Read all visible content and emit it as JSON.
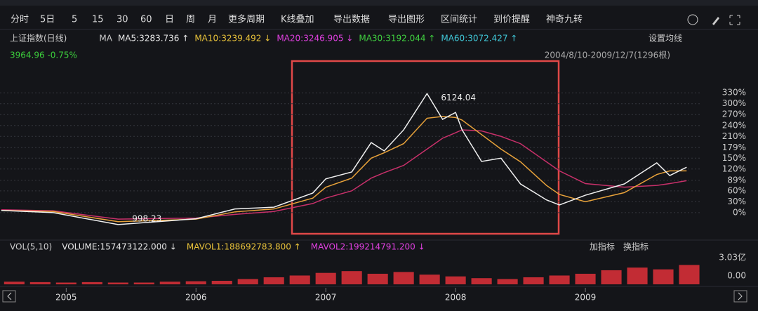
{
  "toolbar": [
    "分时",
    "5日",
    "5",
    "15",
    "30",
    "60",
    "日",
    "周",
    "月",
    "更多周期",
    "K线叠加",
    "导出数据",
    "导出图形",
    "区间统计",
    "到价提醒",
    "神奇九转"
  ],
  "indicator_bar": {
    "name": "上证指数(日线)",
    "ma_label": "MA",
    "ma": [
      {
        "text": "MA5:3283.736 ↑",
        "color": "#e6e6e6"
      },
      {
        "text": "MA10:3239.492 ↓",
        "color": "#e8c23a"
      },
      {
        "text": "MA20:3246.905 ↓",
        "color": "#e040e0"
      },
      {
        "text": "MA30:3192.044 ↑",
        "color": "#40d040"
      },
      {
        "text": "MA60:3072.427 ↑",
        "color": "#40c8d8"
      }
    ],
    "settings": "设置均线"
  },
  "quote": "3964.96 -0.75%",
  "range": "2004/8/10-2009/12/7(1296根)",
  "vol_bar": {
    "items": [
      {
        "text": "VOL(5,10)",
        "color": "#cccccc"
      },
      {
        "text": "VOLUME:157473122.000 ↓",
        "color": "#e6e6e6"
      },
      {
        "text": "MAVOL1:188692783.800 ↑",
        "color": "#e8c23a"
      },
      {
        "text": "MAVOL2:199214791.200 ↓",
        "color": "#e040e0"
      }
    ],
    "buttons": [
      "加指标",
      "换指标"
    ]
  },
  "chart_data": [
    {
      "type": "line",
      "x": [
        2004.5,
        2004.9,
        2005.4,
        2006.0,
        2006.3,
        2006.6,
        2006.9,
        2007.0,
        2007.2,
        2007.35,
        2007.45,
        2007.6,
        2007.78,
        2007.9,
        2008.0,
        2008.05,
        2008.2,
        2008.35,
        2008.5,
        2008.7,
        2008.8,
        2009.0,
        2009.3,
        2009.55,
        2009.65,
        2009.78
      ],
      "series": [
        {
          "color": "#c8306a",
          "values": [
            8,
            5,
            -18,
            -15,
            -5,
            3,
            25,
            40,
            60,
            95,
            110,
            130,
            175,
            205,
            220,
            228,
            225,
            210,
            190,
            140,
            115,
            80,
            70,
            75,
            80,
            88
          ]
        },
        {
          "color": "#e8a23a",
          "values": [
            6,
            3,
            -25,
            -18,
            2,
            10,
            40,
            70,
            95,
            150,
            165,
            190,
            260,
            265,
            262,
            255,
            215,
            175,
            140,
            75,
            50,
            30,
            55,
            105,
            115,
            115
          ]
        },
        {
          "color": "#f0f0f0",
          "values": [
            6,
            0,
            -33,
            -17,
            10,
            15,
            54,
            93,
            112,
            193,
            170,
            228,
            328,
            257,
            276,
            228,
            141,
            150,
            79,
            35,
            21,
            48,
            79,
            137,
            102,
            125
          ]
        }
      ],
      "xlim": [
        2004.49,
        2009.8
      ],
      "xticks": [
        2005,
        2006,
        2007,
        2008,
        2009
      ],
      "ylim": [
        -68,
        402
      ],
      "yticks": [
        {
          "value": 0,
          "label": "0%"
        },
        {
          "value": 30,
          "label": "30%"
        },
        {
          "value": 60,
          "label": "60%"
        },
        {
          "value": 89,
          "label": "89%"
        },
        {
          "value": 120,
          "label": "120%"
        },
        {
          "value": 150,
          "label": "150%"
        },
        {
          "value": 179,
          "label": "179%"
        },
        {
          "value": 210,
          "label": "210%"
        },
        {
          "value": 240,
          "label": "240%"
        },
        {
          "value": 270,
          "label": "270%"
        },
        {
          "value": 300,
          "label": "300%"
        },
        {
          "value": 330,
          "label": "330%"
        }
      ],
      "grid": true,
      "annotations": [
        {
          "text": "6124.04",
          "x": 2007.78,
          "y": 328
        },
        {
          "text": "998.23",
          "x": 2005.4,
          "y": -33
        }
      ]
    },
    {
      "type": "bar",
      "x": [
        2004.6,
        2004.8,
        2005.0,
        2005.2,
        2005.4,
        2005.6,
        2005.8,
        2006.0,
        2006.2,
        2006.4,
        2006.6,
        2006.8,
        2007.0,
        2007.2,
        2007.4,
        2007.6,
        2007.8,
        2008.0,
        2008.2,
        2008.4,
        2008.6,
        2008.8,
        2009.0,
        2009.2,
        2009.4,
        2009.6,
        2009.8
      ],
      "values": [
        0.3,
        0.25,
        0.2,
        0.25,
        0.2,
        0.2,
        0.3,
        0.35,
        0.4,
        0.6,
        0.8,
        1.0,
        1.3,
        1.5,
        1.2,
        1.4,
        1.1,
        0.9,
        0.7,
        0.6,
        0.8,
        1.0,
        1.2,
        1.6,
        1.9,
        1.7,
        2.2
      ],
      "color": "#e0303a",
      "xlim": [
        2004.49,
        2009.8
      ],
      "ylim": [
        0,
        3.03
      ],
      "yticks": [
        {
          "value": 0,
          "label": "0.00"
        },
        {
          "value": 3.03,
          "label": "3.03亿"
        }
      ]
    }
  ]
}
